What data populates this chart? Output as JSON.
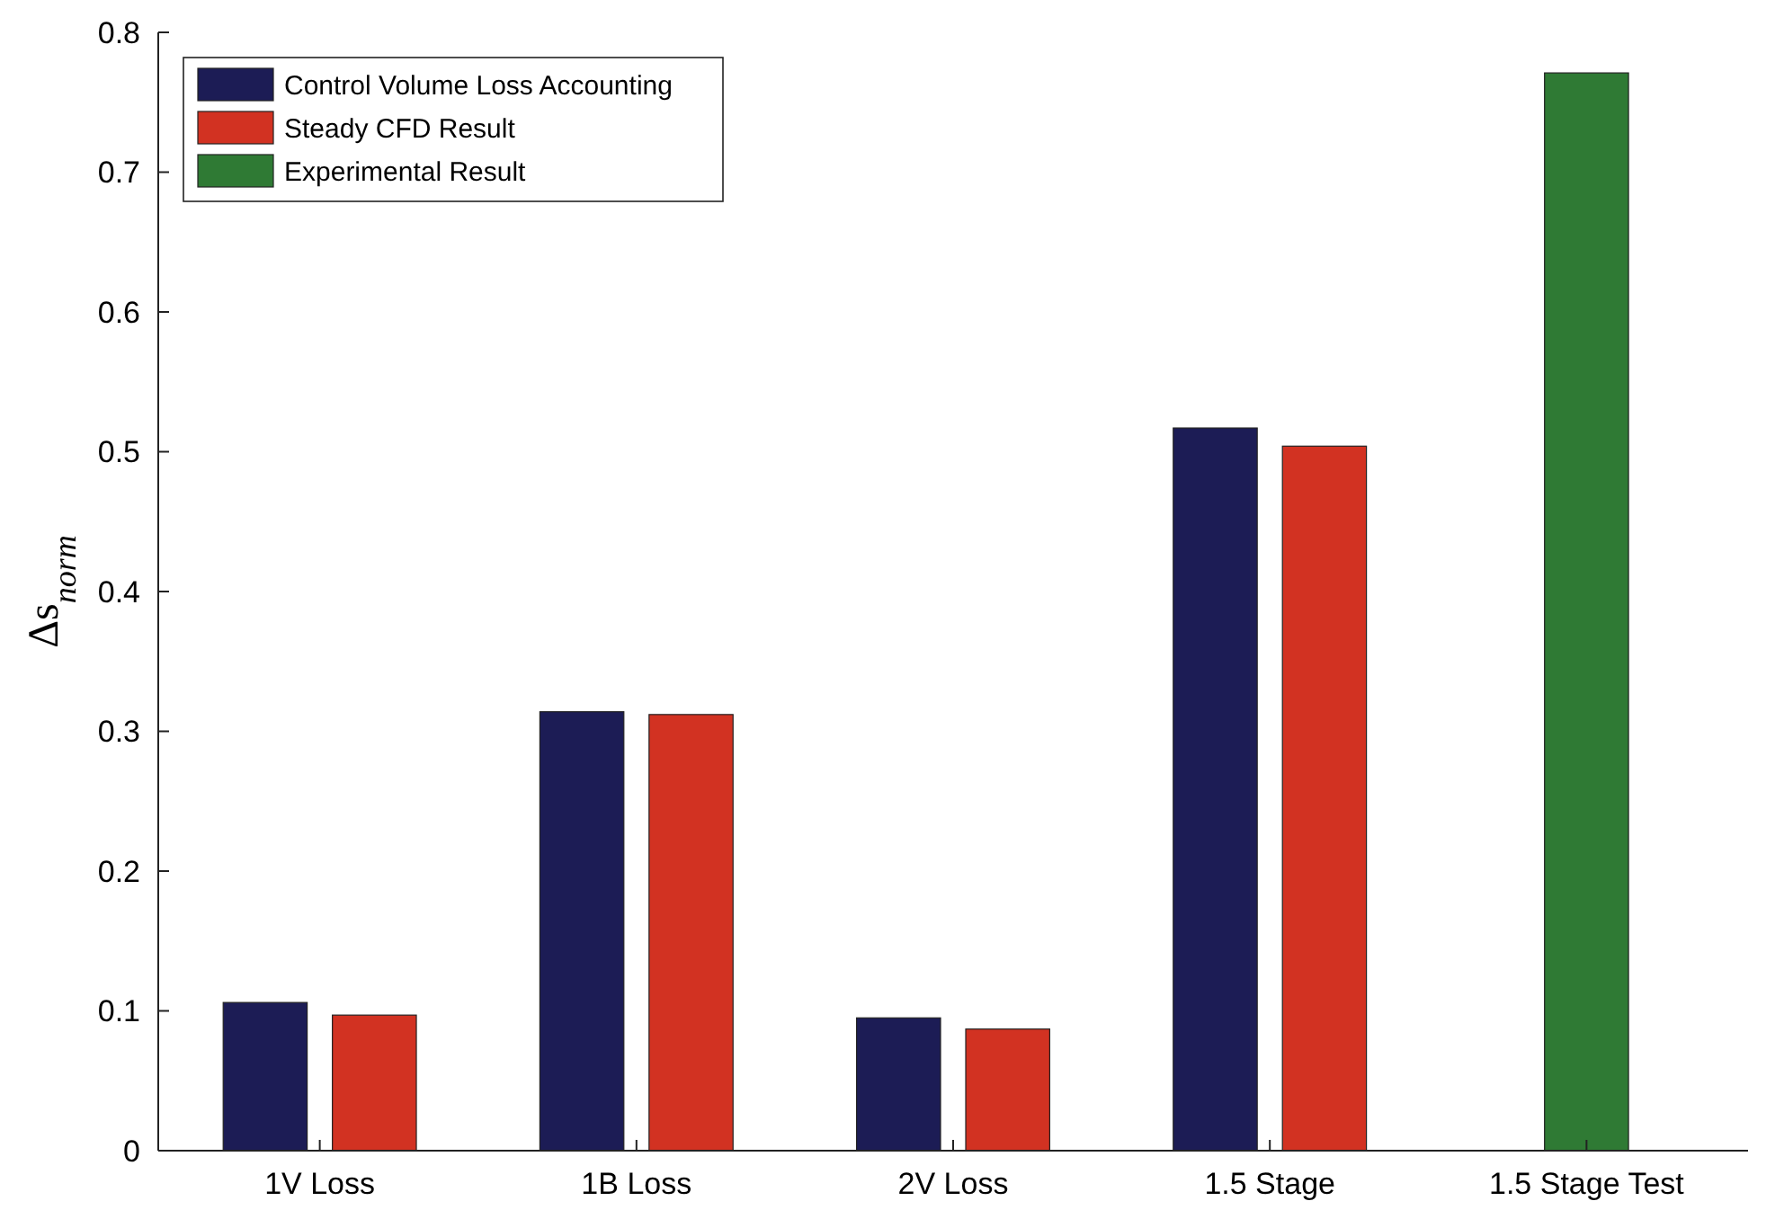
{
  "chart_data": {
    "type": "bar",
    "ylabel": "Δs$_{norm}$",
    "categories": [
      "1V Loss",
      "1B Loss",
      "2V Loss",
      "1.5 Stage",
      "1.5 Stage Test"
    ],
    "series": [
      {
        "name": "Control Volume Loss Accounting",
        "color": "#1c1c55",
        "values": [
          0.106,
          0.314,
          0.095,
          0.517,
          null
        ]
      },
      {
        "name": "Steady CFD Result",
        "color": "#d23222",
        "values": [
          0.097,
          0.312,
          0.087,
          0.504,
          null
        ]
      },
      {
        "name": "Experimental Result",
        "color": "#2f7a34",
        "values": [
          null,
          null,
          null,
          null,
          0.771
        ]
      }
    ],
    "ylim": [
      0,
      0.8
    ],
    "yticks": [
      0,
      0.1,
      0.2,
      0.3,
      0.4,
      0.5,
      0.6,
      0.7,
      0.8
    ],
    "legend": "top left",
    "grid": false
  }
}
